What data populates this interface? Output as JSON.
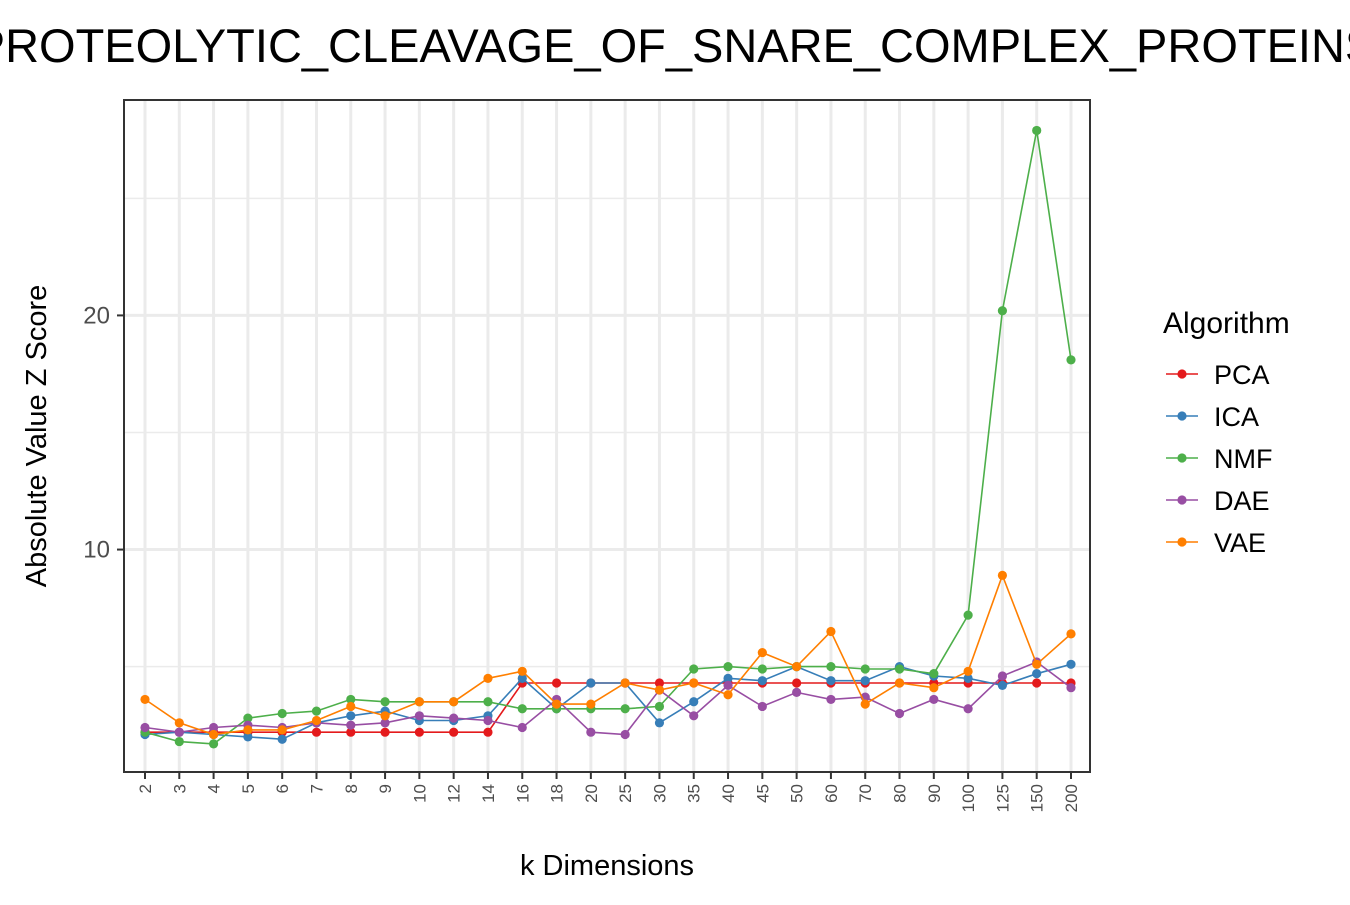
{
  "chart_data": {
    "type": "line",
    "title": "PROTEOLYTIC_CLEAVAGE_OF_SNARE_COMPLEX_PROTEINS",
    "xlabel": "k Dimensions",
    "ylabel": "Absolute Value Z Score",
    "categories": [
      "2",
      "3",
      "4",
      "5",
      "6",
      "7",
      "8",
      "9",
      "10",
      "12",
      "14",
      "16",
      "18",
      "20",
      "25",
      "30",
      "35",
      "40",
      "45",
      "50",
      "60",
      "70",
      "80",
      "90",
      "100",
      "125",
      "150",
      "200"
    ],
    "ylim": [
      0.5,
      29.2
    ],
    "yticks": [
      10,
      20
    ],
    "ytick_labels": [
      "10",
      "20"
    ],
    "grid": true,
    "legend": {
      "title": "Algorithm",
      "position": "right"
    },
    "series": [
      {
        "name": "PCA",
        "color": "#e41a1c",
        "values": [
          2.2,
          2.2,
          2.2,
          2.2,
          2.2,
          2.2,
          2.2,
          2.2,
          2.2,
          2.2,
          2.2,
          4.3,
          4.3,
          4.3,
          4.3,
          4.3,
          4.3,
          4.3,
          4.3,
          4.3,
          4.3,
          4.3,
          4.3,
          4.3,
          4.3,
          4.3,
          4.3,
          4.3
        ]
      },
      {
        "name": "ICA",
        "color": "#377eb8",
        "values": [
          2.1,
          2.2,
          2.1,
          2.0,
          1.9,
          2.6,
          2.9,
          3.1,
          2.7,
          2.7,
          2.9,
          4.5,
          3.2,
          4.3,
          4.3,
          2.6,
          3.5,
          4.5,
          4.4,
          5.0,
          4.4,
          4.4,
          5.0,
          4.6,
          4.5,
          4.2,
          4.7,
          5.1
        ]
      },
      {
        "name": "NMF",
        "color": "#4daf4a",
        "values": [
          2.2,
          1.8,
          1.7,
          2.8,
          3.0,
          3.1,
          3.6,
          3.5,
          3.5,
          3.5,
          3.5,
          3.2,
          3.2,
          3.2,
          3.2,
          3.3,
          4.9,
          5.0,
          4.9,
          5.0,
          5.0,
          4.9,
          4.9,
          4.7,
          7.2,
          20.2,
          27.9,
          18.1
        ]
      },
      {
        "name": "DAE",
        "color": "#984ea3",
        "values": [
          2.4,
          2.2,
          2.4,
          2.5,
          2.4,
          2.6,
          2.5,
          2.6,
          2.9,
          2.8,
          2.7,
          2.4,
          3.6,
          2.2,
          2.1,
          4.0,
          2.9,
          4.2,
          3.3,
          3.9,
          3.6,
          3.7,
          3.0,
          3.6,
          3.2,
          4.6,
          5.2,
          4.1
        ]
      },
      {
        "name": "VAE",
        "color": "#ff7f00",
        "values": [
          3.6,
          2.6,
          2.1,
          2.3,
          2.3,
          2.7,
          3.3,
          2.9,
          3.5,
          3.5,
          4.5,
          4.8,
          3.4,
          3.4,
          4.3,
          4.0,
          4.3,
          3.8,
          5.6,
          5.0,
          6.5,
          3.4,
          4.3,
          4.1,
          4.8,
          8.9,
          5.1,
          6.4
        ]
      }
    ]
  }
}
